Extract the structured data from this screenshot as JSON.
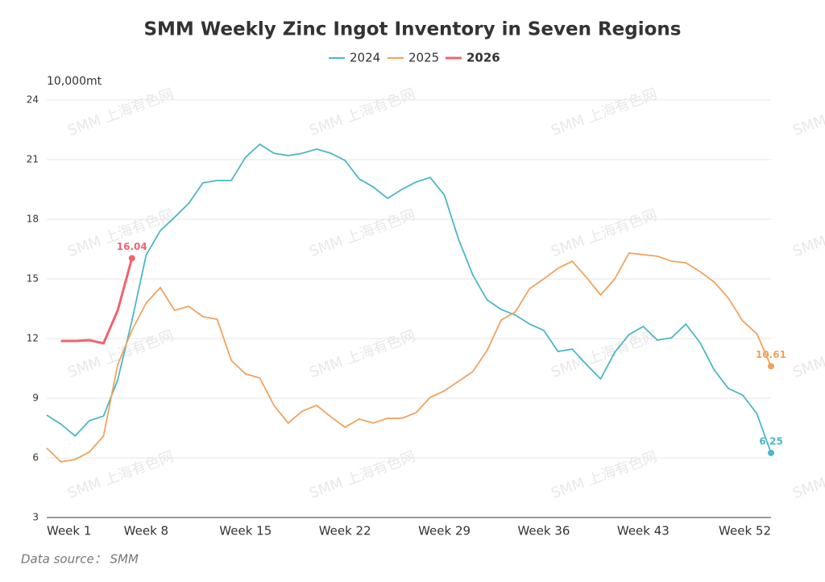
{
  "chart_data": {
    "type": "line",
    "title": "SMM Weekly Zinc Ingot Inventory in Seven Regions",
    "y_label": "10,000mt",
    "source": "Data source：  SMM",
    "watermark": "SMM 上海有色网",
    "categories": [
      "Week 1",
      null,
      null,
      null,
      null,
      null,
      null,
      "Week 8",
      null,
      null,
      null,
      null,
      null,
      null,
      "Week 15",
      null,
      null,
      null,
      null,
      null,
      null,
      "Week 22",
      null,
      null,
      null,
      null,
      null,
      null,
      "Week 29",
      null,
      null,
      null,
      null,
      null,
      null,
      "Week 36",
      null,
      null,
      null,
      null,
      null,
      null,
      "Week 43",
      null,
      null,
      null,
      null,
      null,
      null,
      null,
      null,
      "Week 52"
    ],
    "series": [
      {
        "name": "2024",
        "color": "#4bb8c4",
        "values": [
          8.15,
          7.7,
          7.1,
          7.87,
          8.1,
          9.93,
          12.9,
          16.2,
          17.43,
          18.1,
          18.8,
          19.83,
          19.95,
          19.95,
          21.12,
          21.77,
          21.32,
          21.2,
          21.32,
          21.53,
          21.32,
          20.96,
          20.03,
          19.62,
          19.05,
          19.5,
          19.87,
          20.1,
          19.22,
          16.99,
          15.2,
          13.95,
          13.46,
          13.18,
          12.73,
          12.41,
          11.35,
          11.47,
          10.7,
          9.97,
          11.31,
          12.2,
          12.61,
          11.92,
          12.04,
          12.73,
          11.8,
          10.42,
          9.49,
          9.16,
          8.23,
          6.25
        ]
      },
      {
        "name": "2025",
        "color": "#f0a35e",
        "values": [
          6.49,
          5.8,
          5.92,
          6.29,
          7.1,
          10.7,
          12.41,
          13.79,
          14.56,
          13.42,
          13.62,
          13.1,
          12.97,
          10.9,
          10.22,
          10.02,
          8.64,
          7.75,
          8.35,
          8.64,
          8.07,
          7.54,
          7.95,
          7.75,
          7.99,
          7.99,
          8.27,
          9.04,
          9.37,
          9.85,
          10.34,
          11.39,
          12.93,
          13.34,
          14.51,
          15.0,
          15.53,
          15.89,
          15.08,
          14.19,
          15.0,
          16.3,
          16.22,
          16.14,
          15.89,
          15.81,
          15.37,
          14.84,
          14.03,
          12.89,
          12.24,
          10.61
        ]
      },
      {
        "name": "2026",
        "color": "#f0646e",
        "values": [
          null,
          11.88,
          11.88,
          11.92,
          11.76,
          13.42,
          16.04,
          null,
          null,
          null,
          null,
          null,
          null,
          null,
          null,
          null,
          null,
          null,
          null,
          null,
          null,
          null,
          null,
          null,
          null,
          null,
          null,
          null,
          null,
          null,
          null,
          null,
          null,
          null,
          null,
          null,
          null,
          null,
          null,
          null,
          null,
          null,
          null,
          null,
          null,
          null,
          null,
          null,
          null,
          null,
          null,
          null
        ]
      }
    ],
    "ylim": [
      3,
      24
    ],
    "yticks": [
      3,
      6,
      9,
      12,
      15,
      18,
      21,
      24
    ],
    "grid": true
  }
}
